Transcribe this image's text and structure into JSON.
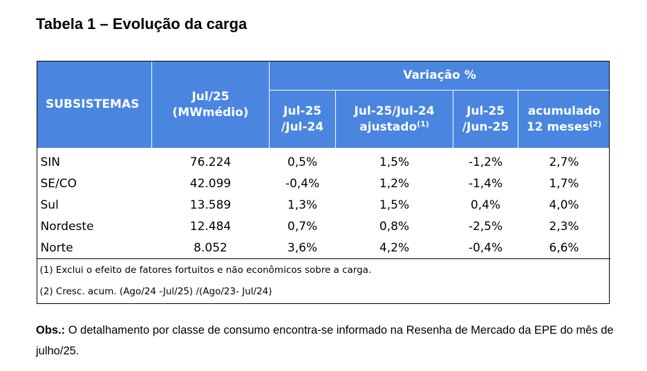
{
  "title": "Tabela 1 – Evolução da carga",
  "table": {
    "header": {
      "subsistemas": "SUBSISTEMAS",
      "jul25_line1": "Jul/25",
      "jul25_line2": "(MWmédio)",
      "variacao": "Variação %",
      "col1_line1": "Jul-25",
      "col1_line2": "/Jul-24",
      "col2_line1": "Jul-25/Jul-24",
      "col2_line2": "ajustado",
      "col2_sup": "(1)",
      "col3_line1": "Jul-25",
      "col3_line2": "/Jun-25",
      "col4_line1": "acumulado",
      "col4_line2": "12 meses",
      "col4_sup": "(2)"
    },
    "rows": [
      {
        "name": "SIN",
        "carga": "76.224",
        "v1": "0,5%",
        "v2": "1,5%",
        "v3": "-1,2%",
        "v4": "2,7%"
      },
      {
        "name": "SE/CO",
        "carga": "42.099",
        "v1": "-0,4%",
        "v2": "1,2%",
        "v3": "-1,4%",
        "v4": "1,7%"
      },
      {
        "name": "Sul",
        "carga": "13.589",
        "v1": "1,3%",
        "v2": "1,5%",
        "v3": "0,4%",
        "v4": "4,0%"
      },
      {
        "name": "Nordeste",
        "carga": "12.484",
        "v1": "0,7%",
        "v2": "0,8%",
        "v3": "-2,5%",
        "v4": "2,3%"
      },
      {
        "name": "Norte",
        "carga": "8.052",
        "v1": "3,6%",
        "v2": "4,2%",
        "v3": "-0,4%",
        "v4": "6,6%"
      }
    ],
    "notes": [
      "(1) Exclui o efeito de fatores fortuitos e não econômicos sobre a carga.",
      "(2) Cresc. acum. (Ago/24 -Jul/25) /(Ago/23- Jul/24)"
    ]
  },
  "obs": {
    "label": "Obs.:",
    "text": " O detalhamento por classe de consumo encontra-se informado na Resenha de Mercado da EPE do mês de julho/25."
  }
}
